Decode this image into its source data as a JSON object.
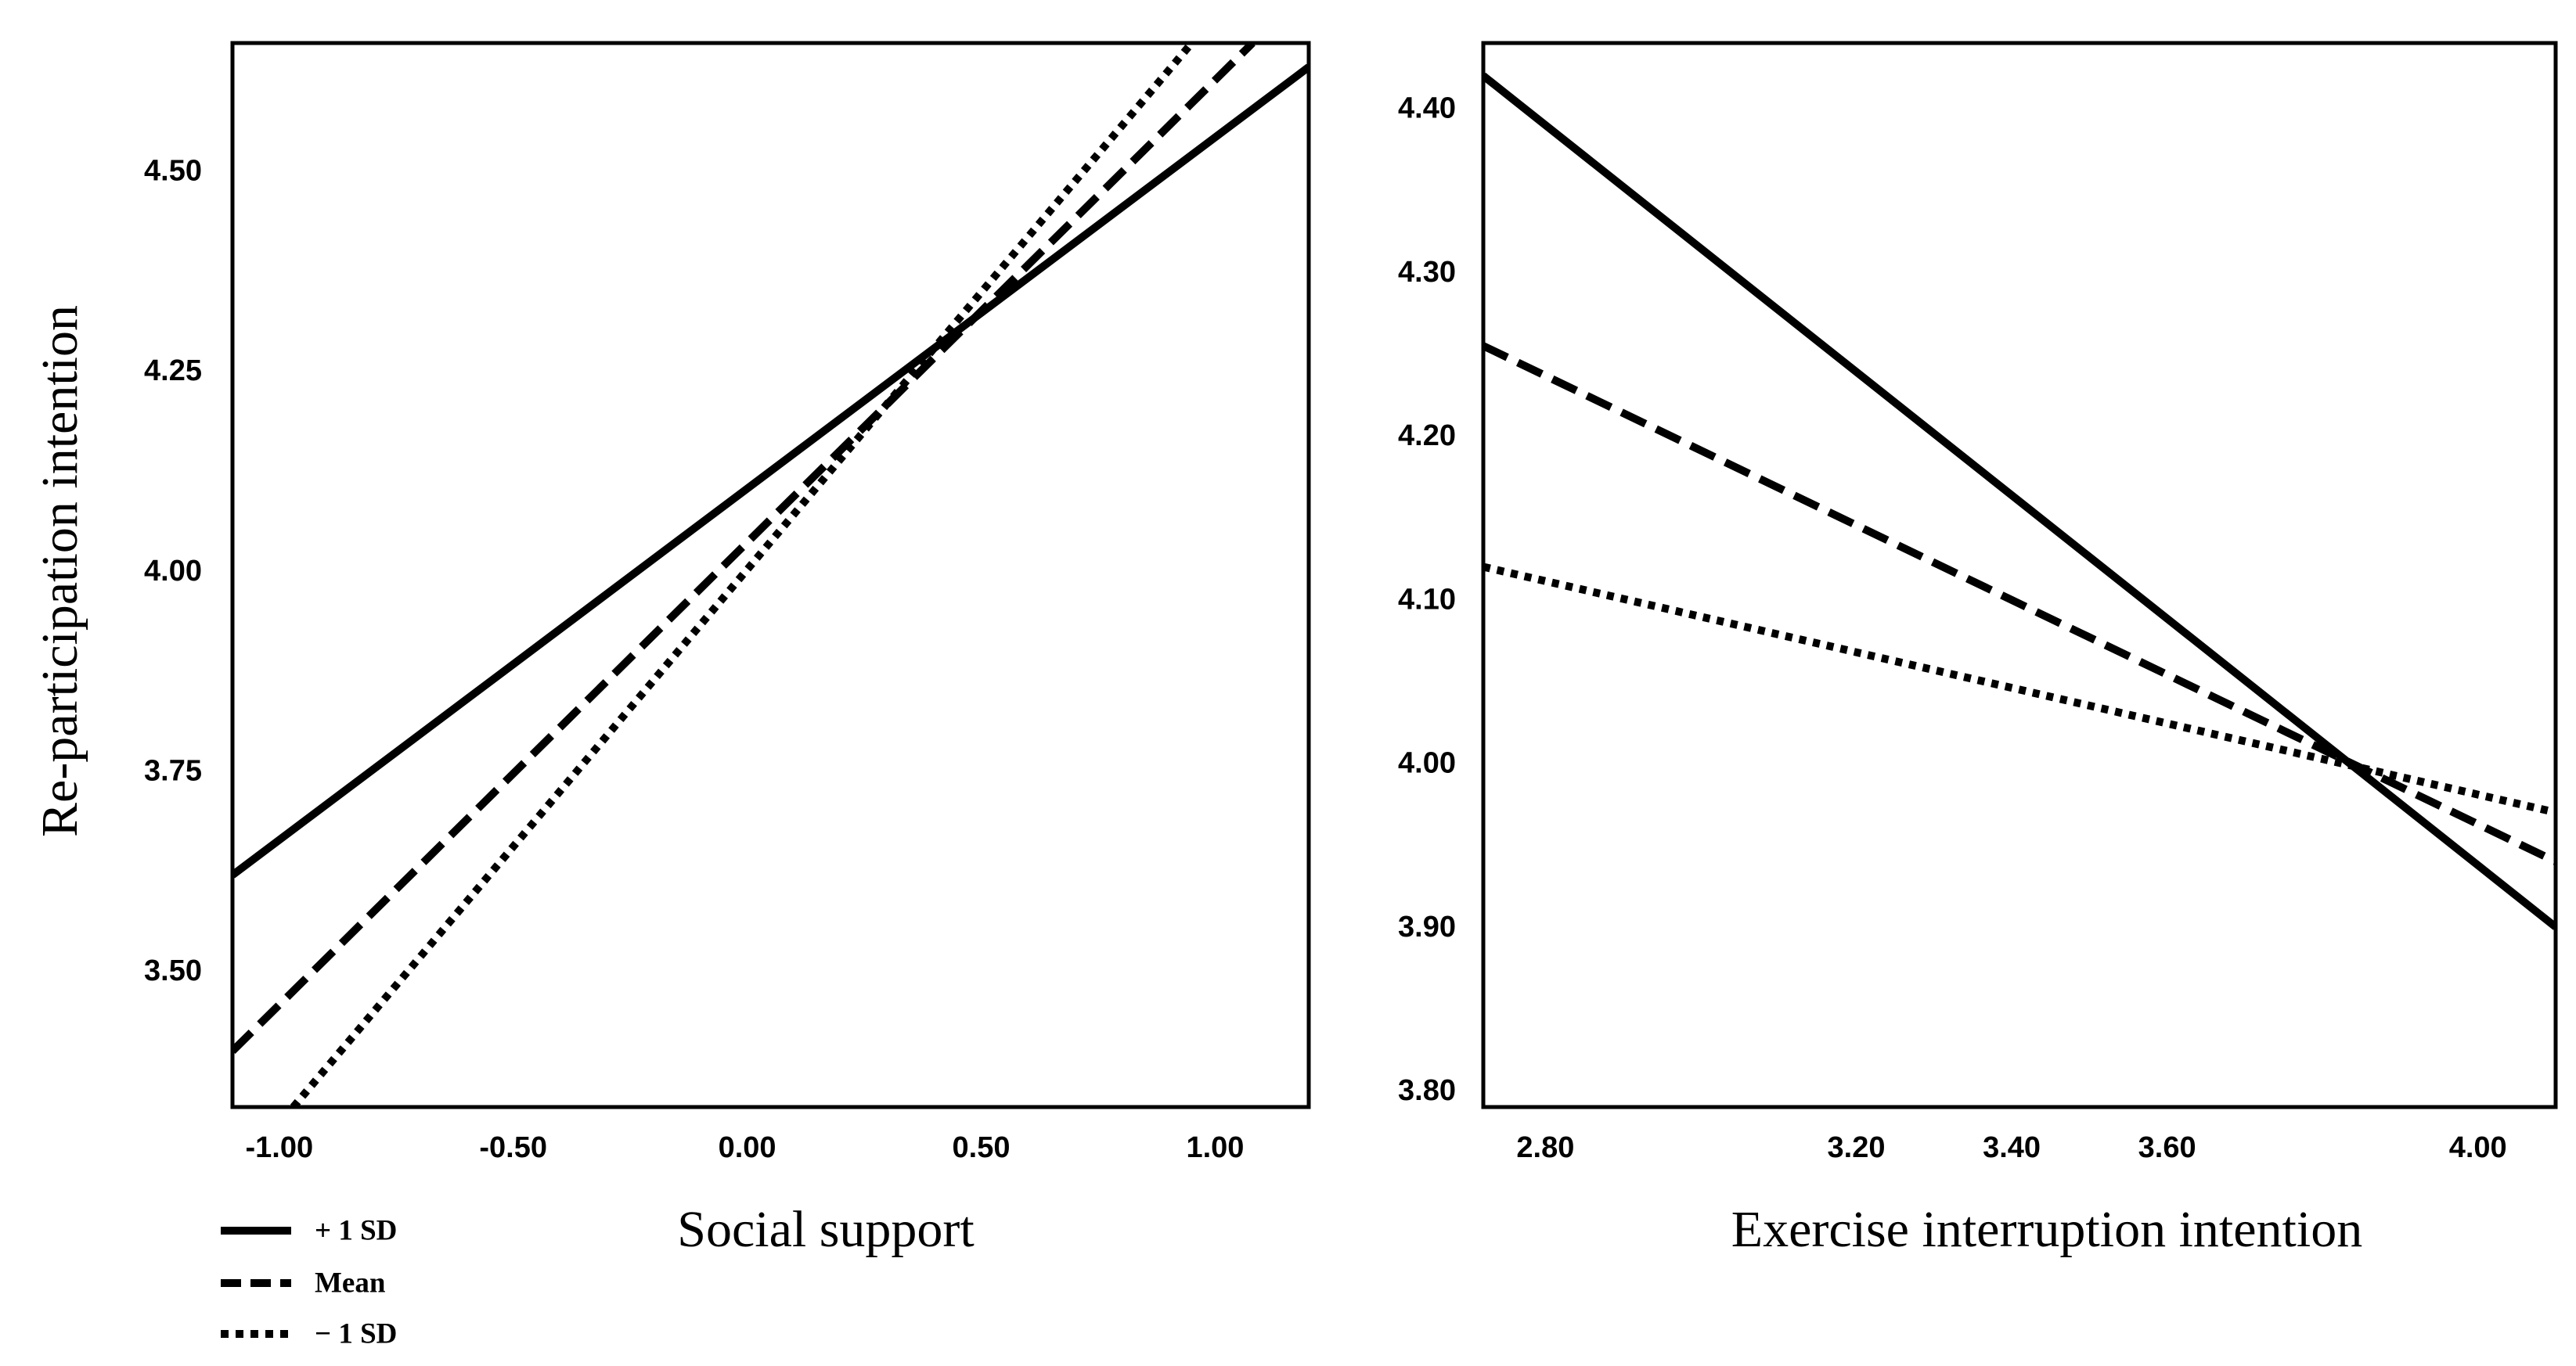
{
  "chart_data": [
    {
      "type": "line",
      "title": "",
      "xlabel": "Social support",
      "ylabel": "Re-participation intention",
      "xlim": [
        -1.1,
        1.2
      ],
      "ylim": [
        3.33,
        4.66
      ],
      "x_ticks": [
        -1.0,
        -0.5,
        0.0,
        0.5,
        1.0
      ],
      "x_tick_labels": [
        "-1.00",
        "-0.50",
        "0.00",
        "0.50",
        "1.00"
      ],
      "y_ticks": [
        3.5,
        3.75,
        4.0,
        4.25,
        4.5
      ],
      "y_tick_labels": [
        "3.50",
        "3.75",
        "4.00",
        "4.25",
        "4.50"
      ],
      "grid": false,
      "series": [
        {
          "name": "+ 1 SD",
          "style": "solid",
          "x": [
            -1.1,
            1.2
          ],
          "y": [
            3.62,
            4.63
          ]
        },
        {
          "name": "Mean",
          "style": "dashed",
          "x": [
            -1.1,
            1.08
          ],
          "y": [
            3.4,
            4.66
          ]
        },
        {
          "name": "− 1 SD",
          "style": "dotted",
          "x": [
            -0.97,
            0.95
          ],
          "y": [
            3.33,
            4.66
          ]
        }
      ]
    },
    {
      "type": "line",
      "title": "",
      "xlabel": "Exercise interruption intention",
      "ylabel": "",
      "xlim": [
        2.72,
        4.1
      ],
      "ylim": [
        3.79,
        4.44
      ],
      "x_ticks": [
        2.8,
        3.2,
        3.4,
        3.6,
        4.0
      ],
      "x_tick_labels": [
        "2.80",
        "3.20",
        "3.40",
        "3.60",
        "4.00"
      ],
      "y_ticks": [
        3.8,
        3.9,
        4.0,
        4.1,
        4.2,
        4.3,
        4.4
      ],
      "y_tick_labels": [
        "3.80",
        "3.90",
        "4.00",
        "4.10",
        "4.20",
        "4.30",
        "4.40"
      ],
      "grid": false,
      "series": [
        {
          "name": "+ 1 SD",
          "style": "solid",
          "x": [
            2.72,
            4.1
          ],
          "y": [
            4.42,
            3.9
          ]
        },
        {
          "name": "Mean",
          "style": "dashed",
          "x": [
            2.72,
            4.1
          ],
          "y": [
            4.255,
            3.94
          ]
        },
        {
          "name": "− 1 SD",
          "style": "dotted",
          "x": [
            2.72,
            4.1
          ],
          "y": [
            4.12,
            3.97
          ]
        }
      ]
    }
  ],
  "legend": {
    "placement": "bottom-left",
    "items": [
      {
        "label": "+ 1 SD",
        "style": "solid"
      },
      {
        "label": "Mean",
        "style": "dashed"
      },
      {
        "label": "− 1 SD",
        "style": "dotted"
      }
    ]
  },
  "colors": {
    "line": "#000000",
    "background": "#ffffff"
  }
}
